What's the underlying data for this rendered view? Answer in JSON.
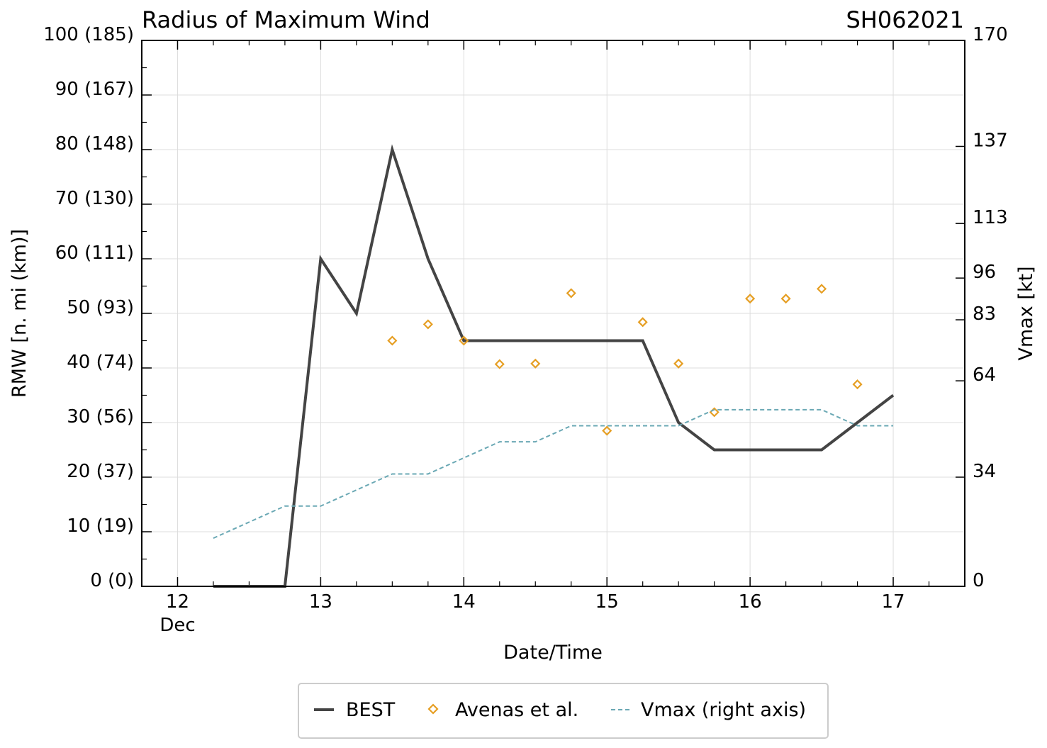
{
  "colors": {
    "best": "#444444",
    "avenas": "#e69f24",
    "vmax": "#6aa8b4",
    "grid": "#dddddd",
    "axis": "#000000"
  },
  "chart_data": {
    "type": "line",
    "title": "Radius of Maximum Wind",
    "storm_id": "SH062021",
    "xlabel": "Date/Time",
    "ylabel_left": "RMW [n. mi (km)]",
    "ylabel_right": "Vmax [kt]",
    "xlim": [
      11.75,
      17.5
    ],
    "ylim_left": [
      0,
      100
    ],
    "ylim_right": [
      0,
      170
    ],
    "x_ticks": [
      {
        "value": 12,
        "label": "12",
        "sublabel": "Dec"
      },
      {
        "value": 13,
        "label": "13",
        "sublabel": ""
      },
      {
        "value": 14,
        "label": "14",
        "sublabel": ""
      },
      {
        "value": 15,
        "label": "15",
        "sublabel": ""
      },
      {
        "value": 16,
        "label": "16",
        "sublabel": ""
      },
      {
        "value": 17,
        "label": "17",
        "sublabel": ""
      }
    ],
    "y_left_ticks": [
      {
        "value": 0,
        "label": "0 (0)"
      },
      {
        "value": 10,
        "label": "10 (19)"
      },
      {
        "value": 20,
        "label": "20 (37)"
      },
      {
        "value": 30,
        "label": "30 (56)"
      },
      {
        "value": 40,
        "label": "40 (74)"
      },
      {
        "value": 50,
        "label": "50 (93)"
      },
      {
        "value": 60,
        "label": "60 (111)"
      },
      {
        "value": 70,
        "label": "70 (130)"
      },
      {
        "value": 80,
        "label": "80 (148)"
      },
      {
        "value": 90,
        "label": "90 (167)"
      },
      {
        "value": 100,
        "label": "100 (185)"
      }
    ],
    "y_right_ticks": [
      {
        "value": 0,
        "label": "0"
      },
      {
        "value": 34,
        "label": "34"
      },
      {
        "value": 64,
        "label": "64"
      },
      {
        "value": 83,
        "label": "83"
      },
      {
        "value": 96,
        "label": "96"
      },
      {
        "value": 113,
        "label": "113"
      },
      {
        "value": 137,
        "label": "137"
      },
      {
        "value": 170,
        "label": "170"
      }
    ],
    "series": [
      {
        "name": "BEST",
        "axis": "left",
        "style": "solid",
        "x": [
          12.25,
          12.5,
          12.75,
          13.0,
          13.25,
          13.5,
          13.75,
          14.0,
          14.25,
          14.5,
          14.75,
          15.0,
          15.25,
          15.5,
          15.75,
          16.0,
          16.25,
          16.5,
          16.75,
          17.0
        ],
        "values": [
          0,
          0,
          0,
          60,
          50,
          80,
          60,
          45,
          45,
          45,
          45,
          45,
          45,
          30,
          25,
          25,
          25,
          25,
          30,
          35
        ]
      },
      {
        "name": "Avenas et al.",
        "axis": "left",
        "style": "markers",
        "x": [
          13.5,
          13.75,
          14.0,
          14.25,
          14.5,
          14.75,
          15.0,
          15.25,
          15.5,
          15.75,
          16.0,
          16.25,
          16.5,
          16.75
        ],
        "values": [
          45,
          48,
          45,
          40.7,
          40.8,
          53.7,
          28.5,
          48.4,
          40.8,
          31.9,
          52.7,
          52.7,
          54.5,
          37
        ]
      },
      {
        "name": "Vmax (right axis)",
        "axis": "right",
        "style": "dashed",
        "x": [
          12.25,
          12.5,
          12.75,
          13.0,
          13.25,
          13.5,
          13.75,
          14.0,
          14.25,
          14.5,
          14.75,
          15.0,
          15.25,
          15.5,
          15.75,
          16.0,
          16.25,
          16.5,
          16.75,
          17.0
        ],
        "values": [
          15,
          20,
          25,
          25,
          30,
          35,
          35,
          40,
          45,
          45,
          50,
          50,
          50,
          50,
          55,
          55,
          55,
          55,
          50,
          50
        ]
      }
    ],
    "legend": {
      "placement": "bottom-center",
      "entries": [
        "BEST",
        "Avenas et al.",
        "Vmax (right axis)"
      ]
    },
    "grid": true
  }
}
